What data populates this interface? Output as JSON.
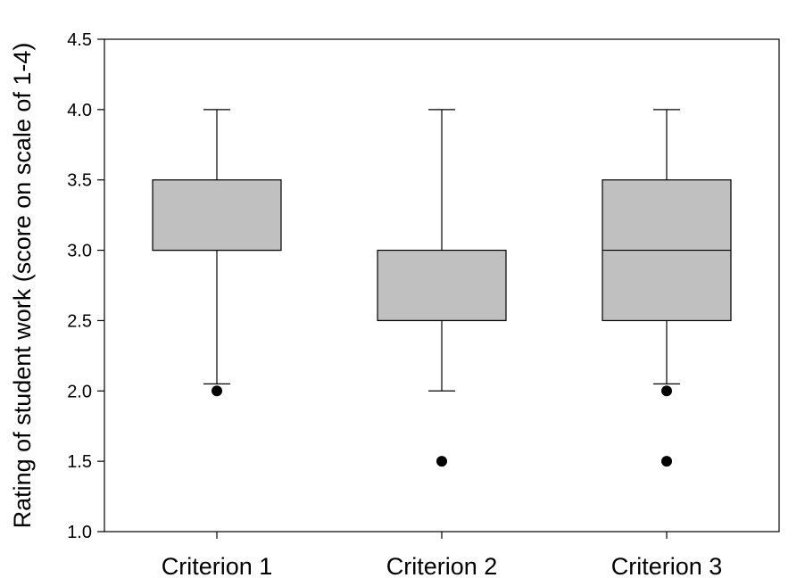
{
  "chart_data": {
    "type": "boxplot",
    "ylabel": "Rating of student work (score on scale of 1-4)",
    "ylim": [
      1.0,
      4.5
    ],
    "yticks": [
      "1.0",
      "1.5",
      "2.0",
      "2.5",
      "3.0",
      "3.5",
      "4.0",
      "4.5"
    ],
    "categories": [
      "Criterion 1",
      "Criterion 2",
      "Criterion 3"
    ],
    "boxes": [
      {
        "category": "Criterion 1",
        "whisker_low": 2.05,
        "q1": 3.0,
        "median": 3.0,
        "q3": 3.5,
        "whisker_high": 4.0,
        "outliers": [
          2.0
        ]
      },
      {
        "category": "Criterion 2",
        "whisker_low": 2.0,
        "q1": 2.5,
        "median": 2.5,
        "q3": 3.0,
        "whisker_high": 4.0,
        "outliers": [
          1.5
        ]
      },
      {
        "category": "Criterion 3",
        "whisker_low": 2.05,
        "q1": 2.5,
        "median": 3.0,
        "q3": 3.5,
        "whisker_high": 4.0,
        "outliers": [
          2.0,
          1.5
        ]
      }
    ],
    "box_color": "#c0c0c0",
    "outlier_color": "#000000",
    "grid": false,
    "legend": "none"
  }
}
